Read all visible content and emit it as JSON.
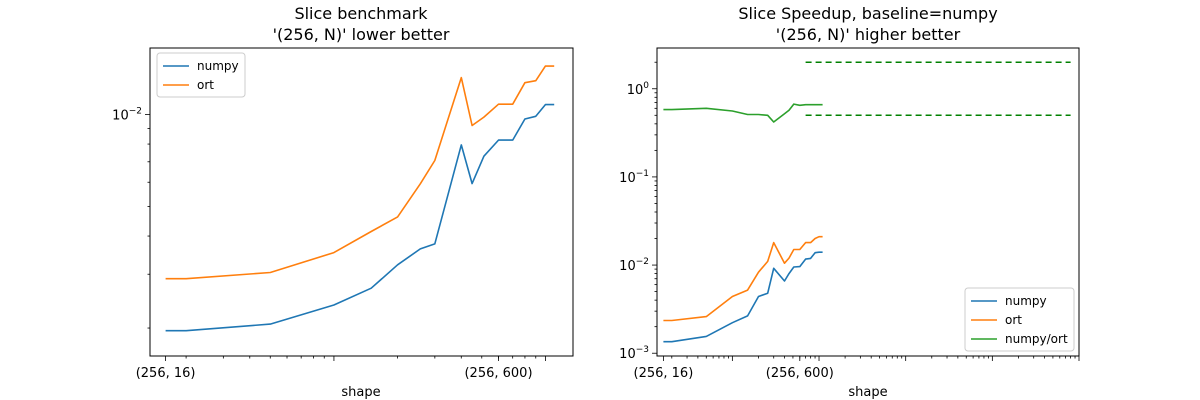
{
  "chart_data": [
    {
      "type": "line",
      "title": "Slice benchmark",
      "subtitle": "'(256, N)' lower better",
      "xlabel": "shape",
      "ylabel": "",
      "xscale": "log",
      "yscale": "log",
      "xlim": [
        13.5,
        1350
      ],
      "ylim": [
        0.00162,
        0.0165
      ],
      "xticks": [
        {
          "value": 16,
          "label": "(256, 16)"
        },
        {
          "value": 600,
          "label": "(256, 600)"
        }
      ],
      "yticks": [
        {
          "value": 0.01,
          "base": "10",
          "exp": "−2"
        }
      ],
      "grid": false,
      "legend": {
        "position": "top-left"
      },
      "series": [
        {
          "name": "numpy",
          "color": "#1f77b4",
          "x": [
            16,
            20,
            50,
            100,
            150,
            200,
            256,
            300,
            400,
            450,
            512,
            600,
            700,
            800,
            900,
            1000,
            1100
          ],
          "y": [
            0.00196,
            0.00196,
            0.00206,
            0.00238,
            0.0027,
            0.00322,
            0.00363,
            0.00377,
            0.00795,
            0.00594,
            0.0073,
            0.00824,
            0.00824,
            0.00966,
            0.00986,
            0.01077,
            0.01077
          ]
        },
        {
          "name": "ort",
          "color": "#ff7f0e",
          "x": [
            16,
            20,
            50,
            100,
            150,
            200,
            256,
            300,
            400,
            450,
            512,
            600,
            700,
            800,
            900,
            1000,
            1100
          ],
          "y": [
            0.0029,
            0.0029,
            0.00304,
            0.00353,
            0.00414,
            0.00462,
            0.00593,
            0.00707,
            0.0132,
            0.0092,
            0.0098,
            0.0108,
            0.0108,
            0.0127,
            0.0129,
            0.0144,
            0.0144
          ]
        }
      ]
    },
    {
      "type": "line",
      "title": "Slice Speedup, baseline=numpy",
      "subtitle": "'(256, N)' higher better",
      "xlabel": "shape",
      "ylabel": "",
      "xscale": "log",
      "yscale": "log",
      "xlim": [
        13.5,
        1000000
      ],
      "ylim": [
        0.00093,
        2.9
      ],
      "xticks": [
        {
          "value": 16,
          "label": "(256, 16)"
        },
        {
          "value": 600,
          "label": "(256, 600)"
        }
      ],
      "yticks": [
        {
          "value": 1,
          "base": "10",
          "exp": "0"
        },
        {
          "value": 0.1,
          "base": "10",
          "exp": "−1"
        },
        {
          "value": 0.01,
          "base": "10",
          "exp": "−2"
        },
        {
          "value": 0.001,
          "base": "10",
          "exp": "−3"
        }
      ],
      "grid": false,
      "legend": {
        "position": "bottom-right"
      },
      "hlines": [
        {
          "y": 2.0,
          "xmin": 700,
          "xmax": 800000,
          "color": "#008000",
          "style": "dashed"
        },
        {
          "y": 0.5,
          "xmin": 700,
          "xmax": 800000,
          "color": "#008000",
          "style": "dashed"
        }
      ],
      "series": [
        {
          "name": "numpy",
          "color": "#1f77b4",
          "x": [
            16,
            20,
            50,
            100,
            150,
            200,
            256,
            300,
            400,
            450,
            512,
            600,
            700,
            800,
            900,
            1000,
            1100
          ],
          "y": [
            0.00135,
            0.00135,
            0.00155,
            0.00222,
            0.00265,
            0.0044,
            0.0048,
            0.0092,
            0.0066,
            0.008,
            0.0095,
            0.0096,
            0.0117,
            0.0119,
            0.0138,
            0.014,
            0.014
          ]
        },
        {
          "name": "ort",
          "color": "#ff7f0e",
          "x": [
            16,
            20,
            50,
            100,
            150,
            200,
            256,
            300,
            400,
            450,
            512,
            600,
            700,
            800,
            900,
            1000,
            1100
          ],
          "y": [
            0.00235,
            0.00235,
            0.0026,
            0.0044,
            0.0052,
            0.0083,
            0.011,
            0.018,
            0.0105,
            0.012,
            0.015,
            0.015,
            0.018,
            0.018,
            0.02,
            0.021,
            0.021
          ]
        },
        {
          "name": "numpy/ort",
          "color": "#2ca02c",
          "x": [
            16,
            20,
            50,
            100,
            150,
            200,
            256,
            300,
            400,
            450,
            512,
            600,
            700,
            800,
            900,
            1000,
            1100
          ],
          "y": [
            0.58,
            0.58,
            0.6,
            0.56,
            0.51,
            0.51,
            0.5,
            0.42,
            0.52,
            0.57,
            0.67,
            0.65,
            0.66,
            0.66,
            0.66,
            0.66,
            0.66
          ]
        }
      ]
    }
  ]
}
